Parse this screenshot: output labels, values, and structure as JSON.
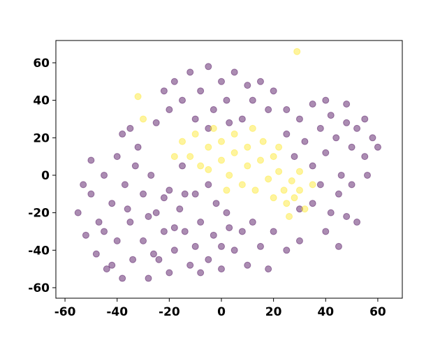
{
  "chart_data": {
    "type": "scatter",
    "xlim": [
      -63.5,
      69.4
    ],
    "ylim": [
      -65.6,
      71.9
    ],
    "xticks": [
      -60,
      -40,
      -20,
      0,
      20,
      40,
      60
    ],
    "yticks": [
      -60,
      -40,
      -20,
      0,
      20,
      40,
      60
    ],
    "grid": false,
    "alpha": 0.45,
    "series": [
      {
        "color": "#440154",
        "x": [
          -55,
          -52,
          -50,
          -48,
          -47,
          -45,
          -44,
          -42,
          -40,
          -40,
          -38,
          -37,
          -35,
          -34,
          -32,
          -30,
          -30,
          -28,
          -27,
          -25,
          -24,
          -22,
          -20,
          -20,
          -18,
          -16,
          -15,
          -14,
          -12,
          -10,
          -10,
          -8,
          -5,
          -5,
          -3,
          0,
          2,
          5,
          8,
          10,
          12,
          15,
          18,
          20,
          -53,
          -50,
          -45,
          -42,
          -36,
          -33,
          -28,
          -26,
          -22,
          -18,
          -14,
          -8,
          0,
          3,
          -2,
          -38,
          -35,
          -18,
          -15,
          -12,
          -10,
          -8,
          -5,
          -3,
          0,
          2,
          5,
          8,
          10,
          12,
          15,
          18,
          20,
          -20,
          -25,
          -22,
          25,
          -5,
          3,
          25,
          28,
          30,
          32,
          35,
          35,
          38,
          40,
          42,
          44,
          46,
          48,
          50,
          52,
          55,
          58,
          55,
          60,
          38,
          45,
          50,
          56,
          40,
          48,
          30,
          35,
          42,
          48,
          52,
          30,
          25,
          40,
          45
        ],
        "y": [
          -20,
          -32,
          -10,
          -42,
          -25,
          0,
          -50,
          -15,
          -35,
          10,
          -55,
          -5,
          -25,
          -45,
          15,
          -10,
          -35,
          -55,
          0,
          -20,
          -45,
          -30,
          -8,
          -52,
          -40,
          -18,
          5,
          -30,
          -48,
          -10,
          -38,
          -25,
          -45,
          -5,
          -32,
          -50,
          -20,
          -40,
          -30,
          -48,
          -25,
          -38,
          -50,
          -30,
          -5,
          8,
          -30,
          -48,
          -18,
          5,
          -22,
          -42,
          -12,
          -28,
          -10,
          -52,
          -38,
          -28,
          -15,
          22,
          25,
          50,
          40,
          55,
          30,
          45,
          58,
          35,
          50,
          40,
          55,
          30,
          48,
          40,
          50,
          35,
          45,
          35,
          28,
          45,
          35,
          25,
          28,
          22,
          10,
          30,
          18,
          38,
          5,
          25,
          12,
          32,
          20,
          0,
          28,
          15,
          25,
          10,
          20,
          30,
          15,
          -5,
          -10,
          -5,
          0,
          40,
          38,
          -18,
          -15,
          -20,
          -22,
          -25,
          -35,
          -40,
          -30,
          -38
        ]
      },
      {
        "color": "#fde725",
        "x": [
          -15,
          -12,
          -10,
          -8,
          -5,
          -3,
          0,
          0,
          3,
          5,
          5,
          8,
          10,
          10,
          12,
          13,
          15,
          16,
          18,
          20,
          20,
          22,
          24,
          25,
          27,
          28,
          30,
          32,
          30,
          -5,
          2,
          22,
          -18,
          -30,
          -32,
          29,
          35,
          26
        ],
        "y": [
          18,
          10,
          22,
          5,
          15,
          25,
          8,
          18,
          0,
          12,
          22,
          -5,
          5,
          15,
          25,
          -8,
          8,
          18,
          -2,
          10,
          -12,
          2,
          -8,
          -15,
          -3,
          -12,
          -8,
          -18,
          2,
          3,
          -8,
          15,
          10,
          30,
          42,
          66,
          -5,
          -22
        ]
      }
    ]
  }
}
